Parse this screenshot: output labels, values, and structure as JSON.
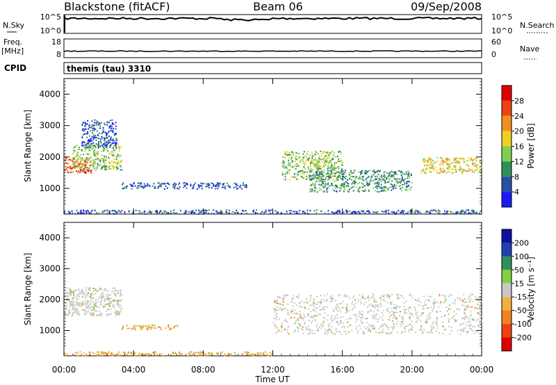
{
  "header": {
    "title_left": "Blackstone (fitACF)",
    "title_center": "Beam 06",
    "title_right": "09/Sep/2008"
  },
  "strips": {
    "nsky_label": "N.Sky",
    "nsearch_label": "N.Search",
    "freq_label": "Freq.",
    "freq_unit": "[MHz]",
    "nave_label": "Nave",
    "cpid_label": "CPID",
    "cpid_text": "themis (tau) 3310",
    "nsky_ticks_left": [
      "10^5",
      "10^0"
    ],
    "nsky_ticks_right": [
      "10^5",
      "10^0"
    ],
    "freq_ticks_left": [
      "18",
      "8"
    ],
    "nave_ticks_right": [
      "60",
      "0"
    ]
  },
  "axes": {
    "x_ticks": [
      "00:00",
      "04:00",
      "08:00",
      "12:00",
      "16:00",
      "20:00",
      "00:00"
    ],
    "x_label": "Time UT",
    "y_label": "Slant Range [km]",
    "y_ticks": [
      "1000",
      "2000",
      "3000",
      "4000"
    ]
  },
  "colorbars": {
    "power": {
      "label": "Power [dB]",
      "ticks": [
        "4",
        "8",
        "12",
        "16",
        "20",
        "24",
        "28"
      ],
      "colors": [
        "#1a1aff",
        "#2a4fa8",
        "#2f8f5a",
        "#7fd050",
        "#f0d020",
        "#f09020",
        "#f04010",
        "#e00000"
      ]
    },
    "velocity": {
      "label": "Velocity [m s⁻¹]",
      "ticks": [
        "200",
        "100",
        "50",
        "15",
        "-15",
        "-50",
        "-100",
        "-200"
      ],
      "colors": [
        "#e00000",
        "#f04010",
        "#f08020",
        "#f0b040",
        "#c8c8c8",
        "#80d040",
        "#2f8f5a",
        "#2040b0",
        "#1010a0"
      ]
    }
  },
  "chart_data": {
    "type": "heatmap",
    "x_range_hours": [
      0,
      24
    ],
    "y_range_km": [
      180,
      4500
    ],
    "power_regions": [
      {
        "t": [
          0.0,
          1.6
        ],
        "r": [
          1500,
          2000
        ],
        "level": 6
      },
      {
        "t": [
          0.5,
          3.3
        ],
        "r": [
          1600,
          2400
        ],
        "level": 3
      },
      {
        "t": [
          1.0,
          3.0
        ],
        "r": [
          2300,
          3200
        ],
        "level": 1
      },
      {
        "t": [
          3.3,
          10.5
        ],
        "r": [
          1000,
          1200
        ],
        "level": 1
      },
      {
        "t": [
          0.0,
          24.0
        ],
        "r": [
          200,
          330
        ],
        "level": 1
      },
      {
        "t": [
          12.5,
          16.0
        ],
        "r": [
          1300,
          2200
        ],
        "level": 3
      },
      {
        "t": [
          14.0,
          20.0
        ],
        "r": [
          900,
          1600
        ],
        "level": 2
      },
      {
        "t": [
          20.5,
          24.0
        ],
        "r": [
          1500,
          2000
        ],
        "level": 4
      }
    ],
    "velocity_regions": [
      {
        "t": [
          0.0,
          3.3
        ],
        "r": [
          1500,
          2400
        ],
        "vel": "-15..15"
      },
      {
        "t": [
          3.3,
          6.5
        ],
        "r": [
          1050,
          1200
        ],
        "vel": "-50..-15"
      },
      {
        "t": [
          0.0,
          12.0
        ],
        "r": [
          200,
          330
        ],
        "vel": "-50..-15"
      },
      {
        "t": [
          12.0,
          24.0
        ],
        "r": [
          900,
          2200
        ],
        "vel": "-15..15"
      }
    ]
  }
}
